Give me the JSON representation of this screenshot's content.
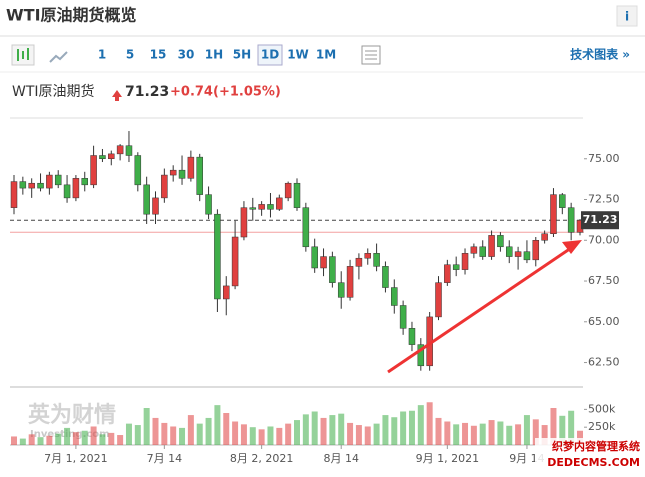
{
  "header": {
    "title": "WTI原油期货概览",
    "info": "i"
  },
  "toolbar": {
    "intervals": [
      "1",
      "5",
      "15",
      "30",
      "1H",
      "5H",
      "1D",
      "1W",
      "1M"
    ],
    "selected": "1D",
    "link": "技术图表 »"
  },
  "quote": {
    "name": "WTI原油期货",
    "price": "71.23",
    "change": "+0.74",
    "change_pct": "(+1.05%)"
  },
  "watermarks": [
    "英为财情",
    "Investing.com",
    "织梦内容管理系统",
    "DEDECMS.COM"
  ],
  "chart_data": {
    "type": "candlestick",
    "up_color": "#e0403f",
    "down_color": "#3fae49",
    "categories": [
      null,
      null,
      null,
      null,
      null,
      null,
      null,
      "7月 1, 2021",
      null,
      null,
      null,
      null,
      null,
      null,
      null,
      null,
      null,
      "7月 14",
      null,
      null,
      null,
      null,
      null,
      null,
      null,
      null,
      null,
      null,
      "8月 2, 2021",
      null,
      null,
      null,
      null,
      null,
      null,
      null,
      null,
      "8月 14",
      null,
      null,
      null,
      null,
      null,
      null,
      null,
      null,
      null,
      null,
      null,
      "9月 1, 2021",
      null,
      null,
      null,
      null,
      null,
      null,
      null,
      null,
      "9月 14",
      null,
      null,
      null,
      null,
      null,
      null
    ],
    "open": [
      72.0,
      73.6,
      73.2,
      73.5,
      73.2,
      74.0,
      73.4,
      72.6,
      73.8,
      73.4,
      75.2,
      75.0,
      75.3,
      75.8,
      75.2,
      73.4,
      71.6,
      72.6,
      74.0,
      74.3,
      73.8,
      75.1,
      72.8,
      71.6,
      66.4,
      67.2,
      70.2,
      72.0,
      71.9,
      72.2,
      71.9,
      72.6,
      73.5,
      72.0,
      69.6,
      68.3,
      69.0,
      67.4,
      66.5,
      68.4,
      68.9,
      69.2,
      68.4,
      67.1,
      66.0,
      64.6,
      63.6,
      62.3,
      65.3,
      67.4,
      68.5,
      68.2,
      69.2,
      69.6,
      69.0,
      70.3,
      69.6,
      69.0,
      69.3,
      68.8,
      70.0,
      70.4,
      72.8,
      72.0,
      70.49
    ],
    "high": [
      74.0,
      73.9,
      73.8,
      74.1,
      74.2,
      74.3,
      74.0,
      74.0,
      74.2,
      75.8,
      75.6,
      75.5,
      75.9,
      76.7,
      75.4,
      73.9,
      73.0,
      74.4,
      74.6,
      75.2,
      75.5,
      75.3,
      73.3,
      71.9,
      67.8,
      71.2,
      72.4,
      72.6,
      72.4,
      72.9,
      72.8,
      73.6,
      73.8,
      72.3,
      70.1,
      69.5,
      69.3,
      68.1,
      68.8,
      69.2,
      69.5,
      69.8,
      68.7,
      67.6,
      66.3,
      65.0,
      64.0,
      65.6,
      67.8,
      68.8,
      69.0,
      69.5,
      69.8,
      70.0,
      70.6,
      70.5,
      70.0,
      69.6,
      70.0,
      70.2,
      70.6,
      73.2,
      72.9,
      72.3,
      71.3
    ],
    "low": [
      71.6,
      72.8,
      72.6,
      73.0,
      72.8,
      73.2,
      72.3,
      72.4,
      73.0,
      73.2,
      74.8,
      74.6,
      74.9,
      74.8,
      73.0,
      71.0,
      71.0,
      72.3,
      73.6,
      73.4,
      73.6,
      72.4,
      71.3,
      65.6,
      65.4,
      67.0,
      70.0,
      71.2,
      71.5,
      71.4,
      71.8,
      72.4,
      71.8,
      69.3,
      68.0,
      67.8,
      67.1,
      65.8,
      66.3,
      67.6,
      68.5,
      68.1,
      66.8,
      65.5,
      64.2,
      63.2,
      62.0,
      62.0,
      65.1,
      67.2,
      67.8,
      67.9,
      68.9,
      68.8,
      68.8,
      69.3,
      68.6,
      68.2,
      68.6,
      68.4,
      69.8,
      70.2,
      71.6,
      70.0,
      70.3
    ],
    "close": [
      73.6,
      73.2,
      73.5,
      73.2,
      74.0,
      73.4,
      72.6,
      73.8,
      73.4,
      75.2,
      75.0,
      75.3,
      75.8,
      75.2,
      73.4,
      71.6,
      72.6,
      74.0,
      74.3,
      73.8,
      75.1,
      72.8,
      71.6,
      66.4,
      67.2,
      70.2,
      72.0,
      71.9,
      72.2,
      71.9,
      72.6,
      73.5,
      72.0,
      69.6,
      68.3,
      69.0,
      67.4,
      66.5,
      68.4,
      68.9,
      69.2,
      68.4,
      67.1,
      66.0,
      64.6,
      63.6,
      62.3,
      65.3,
      67.4,
      68.5,
      68.2,
      69.2,
      69.6,
      69.0,
      70.3,
      69.6,
      69.0,
      69.3,
      68.8,
      70.0,
      70.4,
      72.8,
      72.0,
      70.49,
      71.23
    ],
    "volume": [
      120000,
      90000,
      150000,
      110000,
      130000,
      160000,
      240000,
      180000,
      200000,
      260000,
      150000,
      170000,
      140000,
      300000,
      280000,
      520000,
      380000,
      310000,
      260000,
      240000,
      420000,
      300000,
      380000,
      560000,
      450000,
      330000,
      290000,
      250000,
      220000,
      260000,
      240000,
      300000,
      350000,
      430000,
      470000,
      380000,
      420000,
      440000,
      310000,
      280000,
      260000,
      300000,
      420000,
      390000,
      470000,
      480000,
      560000,
      600000,
      380000,
      330000,
      290000,
      310000,
      270000,
      300000,
      350000,
      330000,
      270000,
      290000,
      420000,
      360000,
      280000,
      520000,
      410000,
      480000,
      200000
    ],
    "last": 71.23,
    "last_label": "71.23",
    "prev_close": 70.49,
    "ylim": [
      61.0,
      77.5
    ],
    "yticks": [
      {
        "value": 62.5,
        "label": "62.50"
      },
      {
        "value": 65,
        "label": "65.00"
      },
      {
        "value": 67.5,
        "label": "67.50"
      },
      {
        "value": 70,
        "label": "70.00"
      },
      {
        "value": 72.5,
        "label": "72.50"
      },
      {
        "value": 75,
        "label": "75.00"
      }
    ],
    "vlim": [
      0,
      800000
    ],
    "vticks": [
      {
        "value": 250000,
        "label": "250k"
      },
      {
        "value": 500000,
        "label": "500k"
      }
    ]
  }
}
